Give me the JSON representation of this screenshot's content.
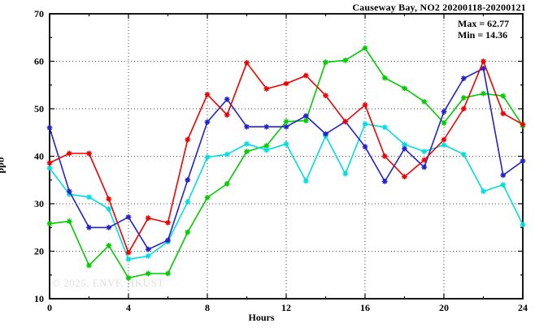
{
  "figure": {
    "title": "Causeway Bay, NO2 20200118-20200121",
    "stats": {
      "max_label": "Max = 62.77",
      "min_label": "Min = 14.36"
    },
    "watermark": "© 2025, ENVF, HKUST"
  },
  "chart_data": {
    "type": "line",
    "title": "Causeway Bay, NO2 20200118-20200121",
    "xlabel": "Hours",
    "ylabel": "ppb",
    "xlim": [
      0,
      24
    ],
    "ylim": [
      10,
      70
    ],
    "x_tick_labels": [
      "0",
      "4",
      "8",
      "12",
      "16",
      "20",
      "24"
    ],
    "x_major_ticks": [
      0,
      4,
      8,
      12,
      16,
      20,
      24
    ],
    "x_minor_ticks": [
      2,
      6,
      10,
      14,
      18,
      22
    ],
    "y_tick_labels": [
      "10",
      "20",
      "30",
      "40",
      "50",
      "60",
      "70"
    ],
    "y_major_ticks": [
      10,
      20,
      30,
      40,
      50,
      60,
      70
    ],
    "y_minor_ticks": [
      15,
      25,
      35,
      45,
      55,
      65
    ],
    "x_gridlines": [
      4,
      8,
      12,
      16,
      20
    ],
    "y_gridlines": [
      20,
      30,
      40,
      50,
      60
    ],
    "grid": "dotted",
    "legend": "none",
    "marker": "asterisk",
    "max_value": 62.77,
    "min_value": 14.36,
    "x": [
      0,
      1,
      2,
      3,
      4,
      5,
      6,
      7,
      8,
      9,
      10,
      11,
      12,
      13,
      14,
      15,
      16,
      17,
      18,
      19,
      20,
      21,
      22,
      23,
      24
    ],
    "series": [
      {
        "name": "series-green",
        "color": "#00cc00",
        "values": [
          25.8,
          26.3,
          17.0,
          21.2,
          14.36,
          15.3,
          15.3,
          24.0,
          31.3,
          34.2,
          41.0,
          42.2,
          47.3,
          47.5,
          59.8,
          60.2,
          62.77,
          56.5,
          54.3,
          51.5,
          47.0,
          52.3,
          53.2,
          52.7,
          46.4
        ]
      },
      {
        "name": "series-cyan",
        "color": "#00dede",
        "values": [
          37.5,
          32.0,
          31.4,
          28.9,
          18.3,
          19.0,
          22.0,
          30.4,
          39.8,
          40.4,
          42.6,
          41.3,
          42.6,
          34.8,
          44.3,
          36.3,
          46.8,
          46.1,
          42.5,
          41.0,
          42.4,
          40.4,
          32.6,
          34.0,
          25.6
        ]
      },
      {
        "name": "series-blue",
        "color": "#2222cc",
        "values": [
          46.0,
          32.6,
          25.0,
          25.0,
          27.2,
          20.4,
          22.3,
          35.0,
          47.2,
          52.0,
          46.2,
          46.2,
          46.2,
          48.5,
          44.7,
          47.3,
          42.0,
          34.7,
          41.6,
          37.7,
          49.4,
          56.4,
          58.5,
          36.0,
          39.0
        ]
      },
      {
        "name": "series-red",
        "color": "#ee0000",
        "values": [
          38.6,
          40.6,
          40.6,
          31.0,
          19.7,
          27.0,
          26.0,
          43.5,
          53.0,
          48.7,
          59.7,
          54.2,
          55.3,
          57.0,
          52.8,
          47.3,
          50.8,
          40.0,
          35.7,
          39.2,
          43.5,
          50.0,
          60.0,
          49.0,
          46.7
        ]
      }
    ]
  }
}
